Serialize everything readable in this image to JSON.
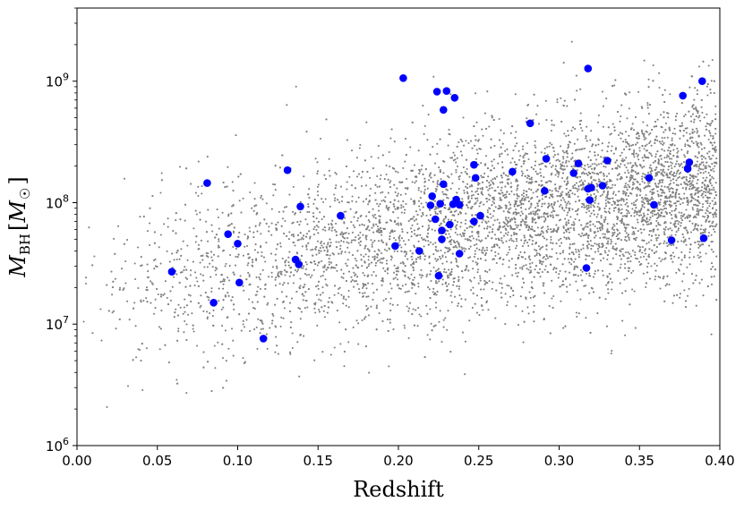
{
  "chart_data": {
    "type": "scatter",
    "xlabel": "Redshift",
    "ylabel_main": "M",
    "ylabel_sub": "BH",
    "ylabel_unit_open": "[",
    "ylabel_unit_main": "M",
    "ylabel_unit_sub": "☉",
    "ylabel_unit_close": "]",
    "xlim": [
      0.0,
      0.4
    ],
    "ylim": [
      1000000,
      4000000000
    ],
    "yscale": "log",
    "grid": false,
    "x_ticks": [
      "0.00",
      "0.05",
      "0.10",
      "0.15",
      "0.20",
      "0.25",
      "0.30",
      "0.35",
      "0.40"
    ],
    "x_tick_values": [
      0.0,
      0.05,
      0.1,
      0.15,
      0.2,
      0.25,
      0.3,
      0.35,
      0.4
    ],
    "y_ticks": [
      {
        "base": "10",
        "exp": "6",
        "value": 1000000
      },
      {
        "base": "10",
        "exp": "7",
        "value": 10000000
      },
      {
        "base": "10",
        "exp": "8",
        "value": 100000000
      },
      {
        "base": "10",
        "exp": "9",
        "value": 1000000000
      }
    ],
    "background_population": {
      "color": "#808080",
      "approx_count": 6000,
      "seed": 7,
      "description_trend": "log10 mass increases with redshift, centered ~7.3 at z=0.02 to ~8.2 at z=0.4, scatter ~0.38 dex",
      "mean_log_mass_at_z0": 7.25,
      "mean_log_mass_slope": 2.4,
      "scatter_dex": 0.38
    },
    "highlight_series": {
      "color": "#0000ff",
      "points": [
        [
          0.059,
          27000000.0
        ],
        [
          0.081,
          145000000.0
        ],
        [
          0.085,
          15000000.0
        ],
        [
          0.094,
          55000000.0
        ],
        [
          0.1,
          46000000.0
        ],
        [
          0.101,
          22000000.0
        ],
        [
          0.116,
          7600000.0
        ],
        [
          0.131,
          185000000.0
        ],
        [
          0.136,
          34000000.0
        ],
        [
          0.138,
          31000000.0
        ],
        [
          0.139,
          93000000.0
        ],
        [
          0.164,
          78000000.0
        ],
        [
          0.198,
          44000000.0
        ],
        [
          0.203,
          1060000000.0
        ],
        [
          0.213,
          40000000.0
        ],
        [
          0.22,
          95000000.0
        ],
        [
          0.221,
          113000000.0
        ],
        [
          0.223,
          73000000.0
        ],
        [
          0.224,
          820000000.0
        ],
        [
          0.225,
          25000000.0
        ],
        [
          0.226,
          98000000.0
        ],
        [
          0.227,
          50000000.0
        ],
        [
          0.227,
          59000000.0
        ],
        [
          0.228,
          142000000.0
        ],
        [
          0.228,
          580000000.0
        ],
        [
          0.23,
          830000000.0
        ],
        [
          0.232,
          66000000.0
        ],
        [
          0.234,
          97000000.0
        ],
        [
          0.235,
          730000000.0
        ],
        [
          0.236,
          106000000.0
        ],
        [
          0.238,
          38000000.0
        ],
        [
          0.238,
          96000000.0
        ],
        [
          0.247,
          70000000.0
        ],
        [
          0.247,
          205000000.0
        ],
        [
          0.248,
          160000000.0
        ],
        [
          0.251,
          78000000.0
        ],
        [
          0.271,
          180000000.0
        ],
        [
          0.282,
          450000000.0
        ],
        [
          0.291,
          125000000.0
        ],
        [
          0.292,
          230000000.0
        ],
        [
          0.309,
          175000000.0
        ],
        [
          0.312,
          210000000.0
        ],
        [
          0.317,
          29000000.0
        ],
        [
          0.318,
          130000000.0
        ],
        [
          0.318,
          1270000000.0
        ],
        [
          0.319,
          105000000.0
        ],
        [
          0.32,
          133000000.0
        ],
        [
          0.327,
          138000000.0
        ],
        [
          0.33,
          222000000.0
        ],
        [
          0.356,
          160000000.0
        ],
        [
          0.359,
          96000000.0
        ],
        [
          0.37,
          49000000.0
        ],
        [
          0.377,
          760000000.0
        ],
        [
          0.38,
          190000000.0
        ],
        [
          0.381,
          215000000.0
        ],
        [
          0.389,
          1000000000.0
        ],
        [
          0.39,
          51000000.0
        ]
      ]
    }
  }
}
